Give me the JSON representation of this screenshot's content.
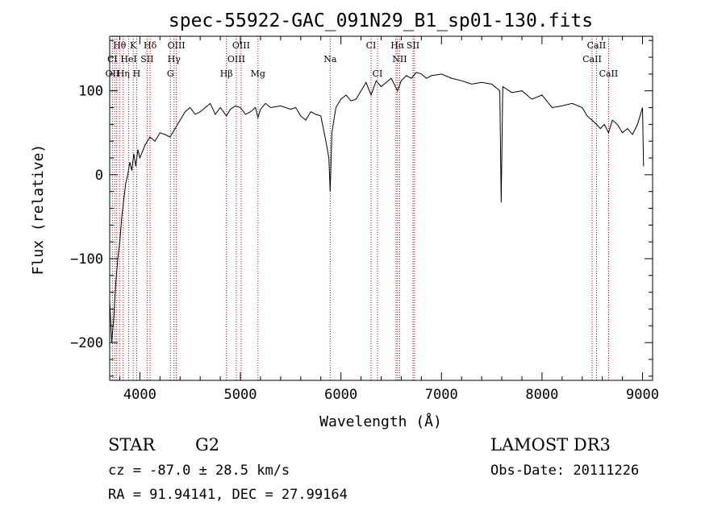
{
  "chart_data": {
    "type": "line",
    "title": "spec-55922-GAC_091N29_B1_sp01-130.fits",
    "xlabel": "Wavelength (Å)",
    "ylabel": "Flux (relative)",
    "xlim": [
      3700,
      9100
    ],
    "ylim": [
      -245,
      165
    ],
    "x_ticks": [
      4000,
      5000,
      6000,
      7000,
      8000,
      9000
    ],
    "y_ticks": [
      -200,
      -100,
      0,
      100
    ],
    "series": [
      {
        "color": "#000000",
        "x": [
          3700,
          3720,
          3740,
          3760,
          3780,
          3800,
          3820,
          3840,
          3860,
          3880,
          3900,
          3920,
          3940,
          3960,
          3980,
          4000,
          4050,
          4100,
          4150,
          4200,
          4250,
          4300,
          4350,
          4400,
          4450,
          4500,
          4550,
          4600,
          4650,
          4700,
          4750,
          4800,
          4861,
          4900,
          4950,
          5000,
          5050,
          5100,
          5150,
          5175,
          5200,
          5250,
          5300,
          5400,
          5500,
          5550,
          5600,
          5650,
          5700,
          5750,
          5800,
          5850,
          5880,
          5893,
          5910,
          5950,
          6000,
          6050,
          6100,
          6150,
          6200,
          6250,
          6300,
          6350,
          6400,
          6450,
          6500,
          6563,
          6600,
          6650,
          6700,
          6750,
          6800,
          6850,
          6900,
          7000,
          7100,
          7200,
          7300,
          7400,
          7500,
          7580,
          7594,
          7610,
          7700,
          7800,
          7900,
          8000,
          8100,
          8200,
          8300,
          8400,
          8450,
          8498,
          8542,
          8580,
          8620,
          8662,
          8700,
          8750,
          8800,
          8850,
          8900,
          8950,
          9000,
          9010
        ],
        "y": [
          -150,
          -200,
          -170,
          -130,
          -100,
          -80,
          -50,
          -30,
          -10,
          0,
          15,
          5,
          25,
          10,
          30,
          20,
          35,
          45,
          40,
          50,
          48,
          45,
          55,
          65,
          75,
          80,
          72,
          75,
          80,
          85,
          72,
          80,
          70,
          78,
          82,
          80,
          72,
          75,
          80,
          68,
          78,
          85,
          80,
          82,
          78,
          80,
          70,
          65,
          75,
          72,
          70,
          40,
          20,
          -20,
          50,
          80,
          90,
          95,
          88,
          90,
          100,
          110,
          95,
          112,
          105,
          110,
          115,
          100,
          112,
          118,
          115,
          122,
          120,
          115,
          118,
          120,
          115,
          112,
          108,
          110,
          108,
          100,
          -33,
          105,
          98,
          100,
          90,
          95,
          80,
          82,
          85,
          80,
          70,
          65,
          60,
          55,
          60,
          50,
          65,
          60,
          50,
          55,
          48,
          60,
          80,
          10
        ]
      }
    ],
    "line_labels": [
      {
        "text": "Hθ",
        "w": 3798,
        "row": 1
      },
      {
        "text": "K",
        "w": 3934,
        "row": 1
      },
      {
        "text": "Hδ",
        "w": 4102,
        "row": 1
      },
      {
        "text": "OIII",
        "w": 4363,
        "row": 1
      },
      {
        "text": "OIII",
        "w": 5007,
        "row": 1
      },
      {
        "text": "CI",
        "w": 6300,
        "row": 1
      },
      {
        "text": "Hα",
        "w": 6563,
        "row": 1
      },
      {
        "text": "SII",
        "w": 6717,
        "row": 1
      },
      {
        "text": "CaII",
        "w": 8542,
        "row": 1
      },
      {
        "text": "CI",
        "w": 3727,
        "row": 2
      },
      {
        "text": "HeI",
        "w": 3889,
        "row": 2
      },
      {
        "text": "SII",
        "w": 4072,
        "row": 2
      },
      {
        "text": "Hγ",
        "w": 4340,
        "row": 2
      },
      {
        "text": "OIII",
        "w": 4959,
        "row": 2
      },
      {
        "text": "Na",
        "w": 5893,
        "row": 2
      },
      {
        "text": "NII",
        "w": 6584,
        "row": 2
      },
      {
        "text": "CaII",
        "w": 8498,
        "row": 2
      },
      {
        "text": "OII",
        "w": 3727,
        "row": 3
      },
      {
        "text": "Hη",
        "w": 3835,
        "row": 3
      },
      {
        "text": "H",
        "w": 3968,
        "row": 3
      },
      {
        "text": "G",
        "w": 4304,
        "row": 3
      },
      {
        "text": "Hβ",
        "w": 4861,
        "row": 3
      },
      {
        "text": "Mg",
        "w": 5175,
        "row": 3
      },
      {
        "text": "CI",
        "w": 6364,
        "row": 3
      },
      {
        "text": "CaII",
        "w": 8662,
        "row": 3
      }
    ],
    "line_markers": [
      3727,
      3750,
      3770,
      3798,
      3835,
      3889,
      3934,
      3968,
      4072,
      4102,
      4304,
      4340,
      4363,
      4861,
      4959,
      5007,
      5175,
      5893,
      6300,
      6364,
      6548,
      6563,
      6584,
      6717,
      6731,
      8498,
      8542,
      8662
    ]
  },
  "info": {
    "class_label": "STAR",
    "subclass": "G2",
    "survey": "LAMOST DR3",
    "cz": "cz = -87.0 ± 28.5 km/s",
    "obs_date": "Obs-Date: 20111226",
    "coords": "RA =  91.94141, DEC =  27.99164"
  },
  "colors": {
    "spectrum": "#000000",
    "marker": "#c00000"
  }
}
